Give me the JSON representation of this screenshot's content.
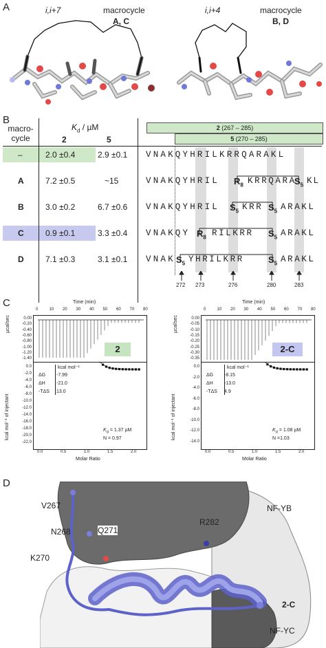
{
  "panel_a": {
    "letter": "A",
    "left": {
      "spacing": "i,i+7",
      "label_word": "macrocycle",
      "label_ids": "A, C"
    },
    "right": {
      "spacing": "i,i+4",
      "label_word": "macrocycle",
      "label_ids": "B, D"
    }
  },
  "panel_b": {
    "letter": "B",
    "col_header_1a": "macro-",
    "col_header_1b": "cycle",
    "kd_header": "K",
    "kd_sub": "d",
    "kd_unit": " / µM",
    "col_2": "2",
    "col_5": "5",
    "bar_2": {
      "num": "2",
      "range": "(267 – 285)"
    },
    "bar_5": {
      "num": "5",
      "range": "(270 – 285)"
    },
    "rows": [
      {
        "macro": "–",
        "kd2": "2.0 ±0.4",
        "kd5": "2.9 ±0.1",
        "seq": "VNAKQYHRILKRRQARAKL"
      },
      {
        "macro": "A",
        "kd2": "7.2 ±0.5",
        "kd5": "~15",
        "seq": "VNAKQYHRIL  KRRQARAKL",
        "stapled_1": "R",
        "stapled_1_sub": "8",
        "stapled_2": "S",
        "stapled_2_sub": "5"
      },
      {
        "macro": "B",
        "kd2": "3.0 ±0.2",
        "kd5": "6.7 ±0.6",
        "seq": "VNAKQYHRIL",
        "stapled_1": "S",
        "stapled_1_sub": "5",
        "stapled_2": "S",
        "stapled_2_sub": "5"
      },
      {
        "macro": "C",
        "kd2": "0.9 ±0.1",
        "kd5": "3.3 ±0.4",
        "stapled_1": "R",
        "stapled_1_sub": "8",
        "stapled_2": "S",
        "stapled_2_sub": "5"
      },
      {
        "macro": "D",
        "kd2": "7.1 ±0.3",
        "kd5": "3.1 ±0.1",
        "stapled_1": "S",
        "stapled_1_sub": "5",
        "stapled_2": "S",
        "stapled_2_sub": "5"
      }
    ],
    "positions": [
      "272",
      "273",
      "276",
      "280",
      "283"
    ],
    "colors": {
      "green": "#cfe8c8",
      "purple": "#c7c9ee",
      "gray": "#d9d9d9"
    }
  },
  "panel_c": {
    "letter": "C",
    "left": {
      "compound": "2",
      "compound_color": "#c6e4bf",
      "time_label": "Time (min)",
      "y_top_label": "µcal/sec",
      "y_bottom_label": "kcal mol⁻¹ of injectant",
      "x_label": "Molar Ratio",
      "unit_header": "kcal mol⁻¹",
      "thermo": [
        {
          "label": "ΔG",
          "value": "-7.99"
        },
        {
          "label": "ΔH",
          "value": "-21.0"
        },
        {
          "label": "-TΔS",
          "value": "13.0"
        }
      ],
      "kd_text": "= 1.37 µM",
      "n_text": "N = 0.97"
    },
    "right": {
      "compound": "2-C",
      "compound_color": "#c3c6ee",
      "time_label": "Time (min)",
      "y_top_label": "µcal/sec",
      "y_bottom_label": "kcal mol⁻¹ of injectant",
      "x_label": "Molar Ratio",
      "unit_header": "kcal mol⁻¹",
      "thermo": [
        {
          "label": "ΔG",
          "value": "-8.15"
        },
        {
          "label": "ΔH",
          "value": "-13.0"
        },
        {
          "label": "-TΔS",
          "value": "4.9"
        }
      ],
      "kd_text": "= 1.08 µM",
      "n_text": "N =1.03"
    },
    "time_ticks": [
      "0",
      "10",
      "20",
      "30",
      "40",
      "50",
      "60",
      "70",
      "80"
    ],
    "ratio_ticks": [
      "0.0",
      "0.5",
      "1.0",
      "1.5",
      "2.0"
    ],
    "left_top_ticks": [
      "0.00",
      "-0.20",
      "-0.40",
      "-0.60",
      "-0.80",
      "-1.00",
      "-1.20",
      "-1.40"
    ],
    "left_bottom_ticks": [
      "0.0",
      "-2.0",
      "-4.0",
      "-6.0",
      "-8.0",
      "-10.0",
      "-12.0",
      "-14.0",
      "-16.0",
      "-18.0",
      "-20.0",
      "-22.0"
    ],
    "right_top_ticks": [
      "0.00",
      "-0.05",
      "-0.10",
      "-0.15",
      "-0.20",
      "-0.25",
      "-0.30",
      "-0.35"
    ],
    "right_bottom_ticks": [
      "0.0",
      "-2.0",
      "-4.0",
      "-6.0",
      "-8.0",
      "-10.0",
      "-12.0",
      "-14.0"
    ]
  },
  "panel_d": {
    "letter": "D",
    "labels": {
      "v267": "V267",
      "n268": "N268",
      "q271": "Q271",
      "k270": "K270",
      "r282": "R282",
      "nfyb": "NF-YB",
      "nfyc": "NF-YC",
      "twoc": "2-C"
    }
  }
}
